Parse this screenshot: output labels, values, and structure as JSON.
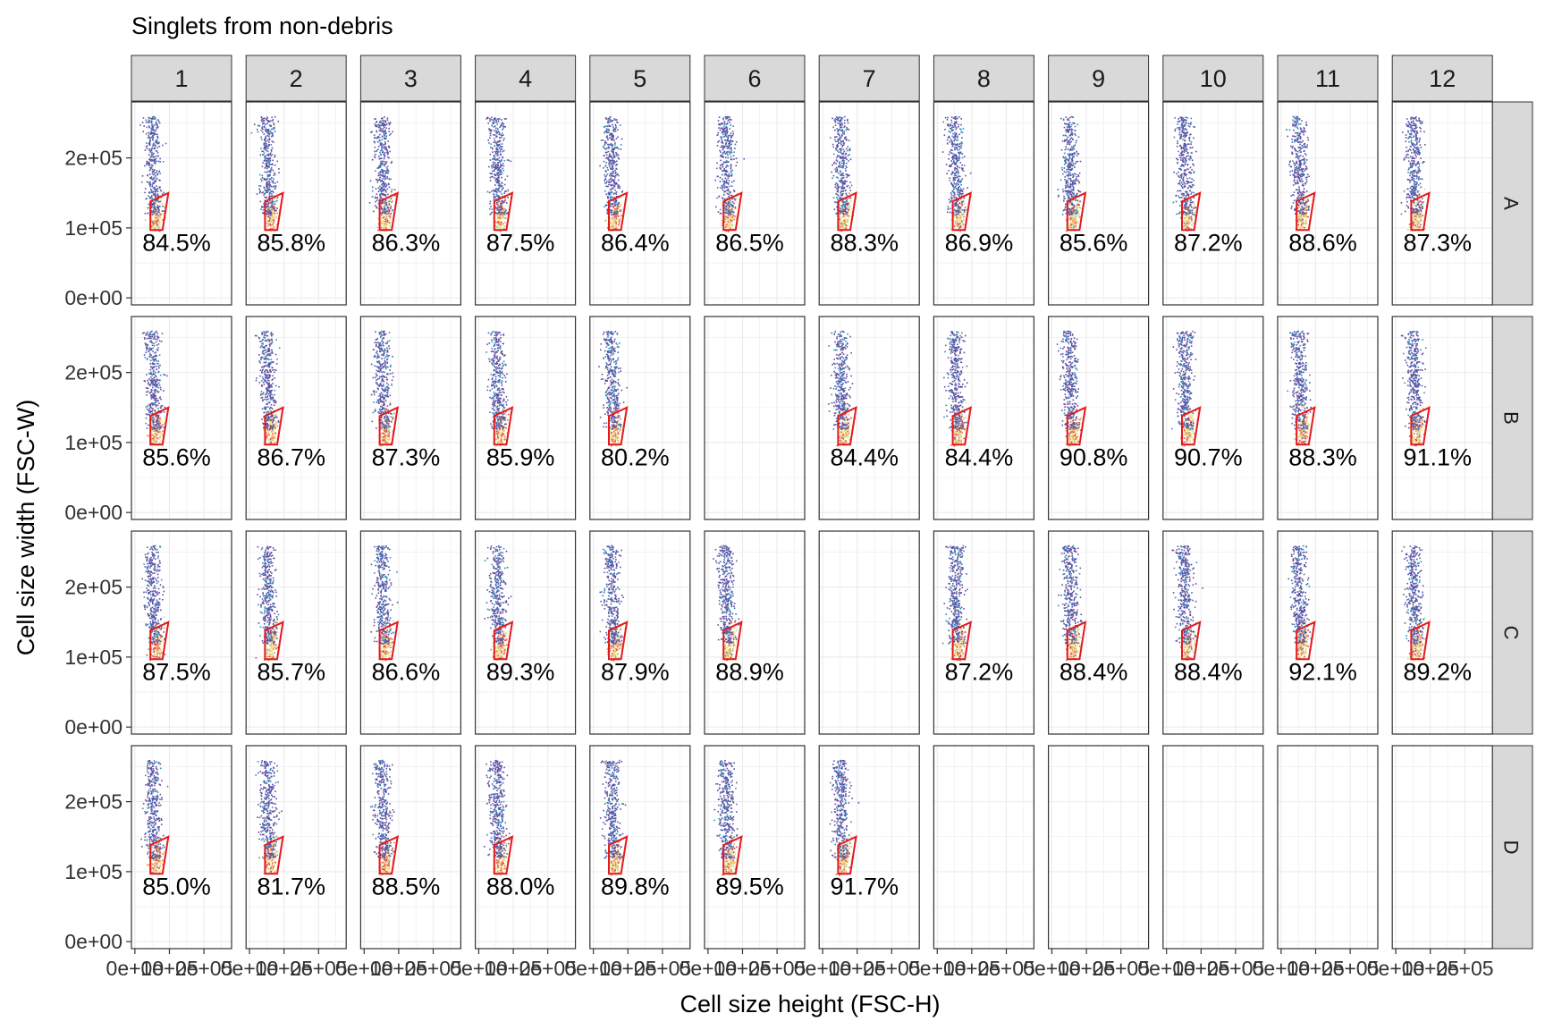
{
  "chart_data": {
    "type": "scatter",
    "subtype": "faceted flow-cytometry density plots with polygon gate",
    "title": "Singlets from non-debris",
    "xlabel": "Cell size height (FSC-H)",
    "ylabel": "Cell size width (FSC-W)",
    "x_tick_labels": [
      "0e+00",
      "1e+05",
      "2e+05"
    ],
    "x_tick_values": [
      0,
      100000,
      200000
    ],
    "y_tick_labels": [
      "0e+00",
      "1e+05",
      "2e+05"
    ],
    "y_tick_values": [
      0,
      100000,
      200000
    ],
    "xlim": [
      -10000,
      280000
    ],
    "ylim": [
      -10000,
      280000
    ],
    "grid": true,
    "legend": "none",
    "columns": [
      "1",
      "2",
      "3",
      "4",
      "5",
      "6",
      "7",
      "8",
      "9",
      "10",
      "11",
      "12"
    ],
    "rows": [
      "A",
      "B",
      "C",
      "D"
    ],
    "gate_color": "#e31a1c",
    "gate_polygon": [
      [
        45000,
        97000
      ],
      [
        80000,
        97000
      ],
      [
        97000,
        150000
      ],
      [
        45000,
        138000
      ]
    ],
    "density_colors": [
      "#5e4fa2",
      "#3288bd",
      "#66c2a5",
      "#abdda4",
      "#e6f598",
      "#fee08b",
      "#fdae61",
      "#f46d43",
      "#d53e4f"
    ],
    "percentages": {
      "A": [
        "84.5%",
        "85.8%",
        "86.3%",
        "87.5%",
        "86.4%",
        "86.5%",
        "88.3%",
        "86.9%",
        "85.6%",
        "87.2%",
        "88.6%",
        "87.3%"
      ],
      "B": [
        "85.6%",
        "86.7%",
        "87.3%",
        "85.9%",
        "80.2%",
        null,
        "84.4%",
        "84.4%",
        "90.8%",
        "90.7%",
        "88.3%",
        "91.1%"
      ],
      "C": [
        "87.5%",
        "85.7%",
        "86.6%",
        "89.3%",
        "87.9%",
        "88.9%",
        null,
        "87.2%",
        "88.4%",
        "88.4%",
        "92.1%",
        "89.2%"
      ],
      "D": [
        "85.0%",
        "81.7%",
        "88.5%",
        "88.0%",
        "89.8%",
        "89.5%",
        "91.7%",
        null,
        null,
        null,
        null,
        null
      ]
    }
  }
}
